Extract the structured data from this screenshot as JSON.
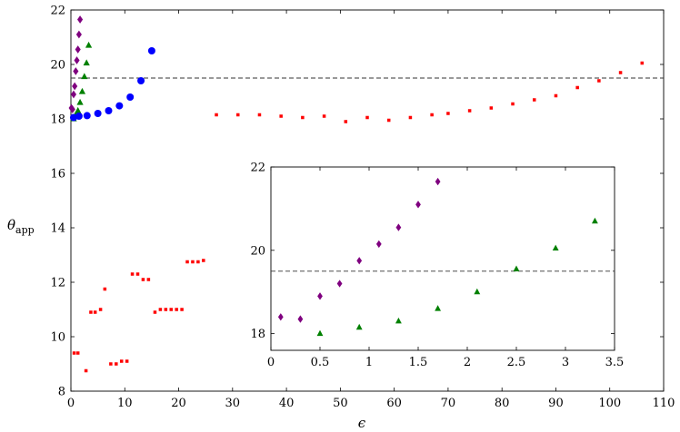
{
  "chart_data": [
    {
      "type": "scatter",
      "xlabel": "ϵ",
      "ylabel": "θ",
      "ylabel_sub": "app",
      "xlim": [
        0,
        110
      ],
      "ylim": [
        8,
        22
      ],
      "xticks": [
        0,
        10,
        20,
        30,
        40,
        50,
        60,
        70,
        80,
        90,
        100,
        110
      ],
      "yticks": [
        8,
        10,
        12,
        14,
        16,
        18,
        20,
        22
      ],
      "grid": false,
      "reference_line": {
        "y": 19.5,
        "style": "dashed",
        "color": "#333333"
      },
      "series": [
        {
          "marker": "diamond",
          "color": "#7f007f",
          "points": [
            [
              0.1,
              18.4
            ],
            [
              0.3,
              18.35
            ],
            [
              0.5,
              18.9
            ],
            [
              0.7,
              19.2
            ],
            [
              0.9,
              19.75
            ],
            [
              1.1,
              20.15
            ],
            [
              1.3,
              20.55
            ],
            [
              1.5,
              21.1
            ],
            [
              1.7,
              21.65
            ]
          ]
        },
        {
          "marker": "triangle",
          "color": "#008000",
          "points": [
            [
              0.5,
              18.0
            ],
            [
              0.9,
              18.15
            ],
            [
              1.3,
              18.3
            ],
            [
              1.7,
              18.6
            ],
            [
              2.1,
              19.0
            ],
            [
              2.5,
              19.55
            ],
            [
              2.9,
              20.05
            ],
            [
              3.3,
              20.7
            ]
          ]
        },
        {
          "marker": "circle",
          "color": "#0000ff",
          "points": [
            [
              0.5,
              18.05
            ],
            [
              1.5,
              18.1
            ],
            [
              3.0,
              18.12
            ],
            [
              5.0,
              18.2
            ],
            [
              7.0,
              18.3
            ],
            [
              9.0,
              18.48
            ],
            [
              11.0,
              18.8
            ],
            [
              13.0,
              19.4
            ],
            [
              15.0,
              20.5
            ]
          ]
        },
        {
          "marker": "square",
          "color": "#ff0000",
          "points": [
            [
              0.6,
              9.4
            ],
            [
              1.3,
              9.4
            ],
            [
              2.8,
              8.75
            ],
            [
              3.7,
              10.9
            ],
            [
              4.5,
              10.9
            ],
            [
              5.5,
              11.0
            ],
            [
              6.3,
              11.75
            ],
            [
              7.4,
              9.0
            ],
            [
              8.4,
              9.0
            ],
            [
              9.4,
              9.1
            ],
            [
              10.4,
              9.1
            ],
            [
              11.4,
              12.3
            ],
            [
              12.4,
              12.3
            ],
            [
              13.4,
              12.1
            ],
            [
              14.4,
              12.1
            ],
            [
              15.6,
              10.9
            ],
            [
              16.6,
              11.0
            ],
            [
              17.6,
              11.0
            ],
            [
              18.6,
              11.0
            ],
            [
              19.6,
              11.0
            ],
            [
              20.6,
              11.0
            ],
            [
              21.6,
              12.75
            ],
            [
              22.6,
              12.75
            ],
            [
              23.6,
              12.75
            ],
            [
              24.6,
              12.8
            ],
            [
              27,
              18.15
            ],
            [
              31,
              18.15
            ],
            [
              35,
              18.15
            ],
            [
              39,
              18.1
            ],
            [
              43,
              18.05
            ],
            [
              47,
              18.1
            ],
            [
              51,
              17.9
            ],
            [
              55,
              18.05
            ],
            [
              59,
              17.95
            ],
            [
              63,
              18.05
            ],
            [
              67,
              18.15
            ],
            [
              70,
              18.2
            ],
            [
              74,
              18.3
            ],
            [
              78,
              18.4
            ],
            [
              82,
              18.55
            ],
            [
              86,
              18.7
            ],
            [
              90,
              18.85
            ],
            [
              94,
              19.15
            ],
            [
              98,
              19.4
            ],
            [
              102,
              19.7
            ],
            [
              106,
              20.05
            ]
          ]
        }
      ]
    },
    {
      "type": "scatter",
      "xlim": [
        0,
        3.5
      ],
      "ylim": [
        17.6,
        22
      ],
      "xticks": [
        0,
        0.5,
        1,
        1.5,
        2,
        2.5,
        3,
        3.5
      ],
      "xtick_labels": [
        "0",
        "0.5",
        "1",
        "1.5",
        "2",
        "2.5",
        "3",
        "3.5"
      ],
      "yticks": [
        18,
        20,
        22
      ],
      "grid": false,
      "reference_line": {
        "y": 19.5,
        "style": "dashed",
        "color": "#333333"
      },
      "series": [
        {
          "marker": "diamond",
          "color": "#7f007f",
          "points": [
            [
              0.1,
              18.4
            ],
            [
              0.3,
              18.35
            ],
            [
              0.5,
              18.9
            ],
            [
              0.7,
              19.2
            ],
            [
              0.9,
              19.75
            ],
            [
              1.1,
              20.15
            ],
            [
              1.3,
              20.55
            ],
            [
              1.5,
              21.1
            ],
            [
              1.7,
              21.65
            ]
          ]
        },
        {
          "marker": "triangle",
          "color": "#008000",
          "points": [
            [
              0.5,
              18.0
            ],
            [
              0.9,
              18.15
            ],
            [
              1.3,
              18.3
            ],
            [
              1.7,
              18.6
            ],
            [
              2.1,
              19.0
            ],
            [
              2.5,
              19.55
            ],
            [
              2.9,
              20.05
            ],
            [
              3.3,
              20.7
            ]
          ]
        }
      ]
    }
  ]
}
